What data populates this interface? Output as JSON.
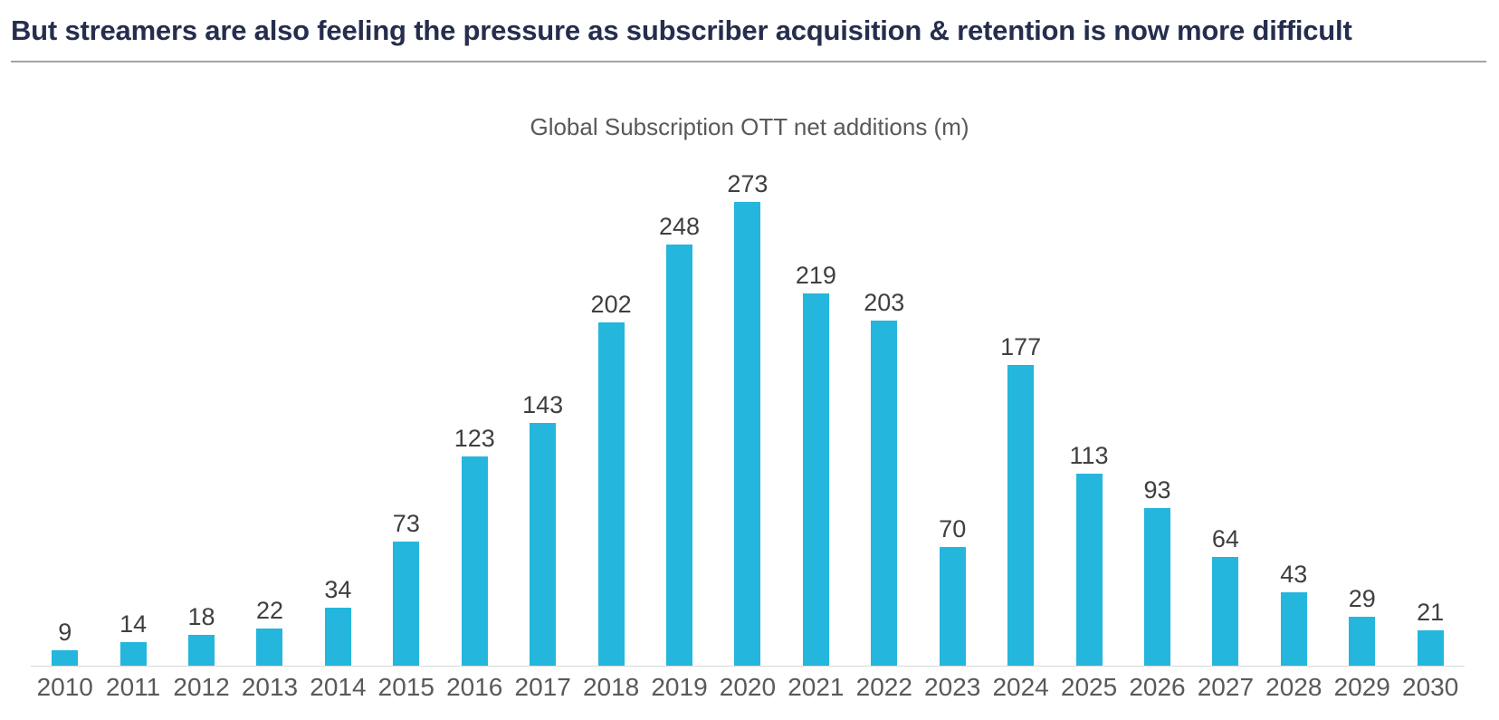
{
  "slide": {
    "title": "But streamers are also feeling the pressure as subscriber acquisition & retention is now more difficult"
  },
  "chart_data": {
    "type": "bar",
    "title": "Global Subscription OTT net additions (m)",
    "categories": [
      "2010",
      "2011",
      "2012",
      "2013",
      "2014",
      "2015",
      "2016",
      "2017",
      "2018",
      "2019",
      "2020",
      "2021",
      "2022",
      "2023",
      "2024",
      "2025",
      "2026",
      "2027",
      "2028",
      "2029",
      "2030"
    ],
    "values": [
      9,
      14,
      18,
      22,
      34,
      73,
      123,
      143,
      202,
      248,
      273,
      219,
      203,
      70,
      177,
      113,
      93,
      64,
      43,
      29,
      21
    ],
    "xlabel": "",
    "ylabel": "",
    "ylim": [
      0,
      273
    ],
    "grid": false,
    "legend_position": "none",
    "value_labels": true
  },
  "colors": {
    "bar": "#24B6DC",
    "title": "#262E4E",
    "value_label": "#3F3F3F",
    "axis_label": "#595959",
    "divider": "#A3A3A3",
    "baseline": "#D8D8D8"
  }
}
